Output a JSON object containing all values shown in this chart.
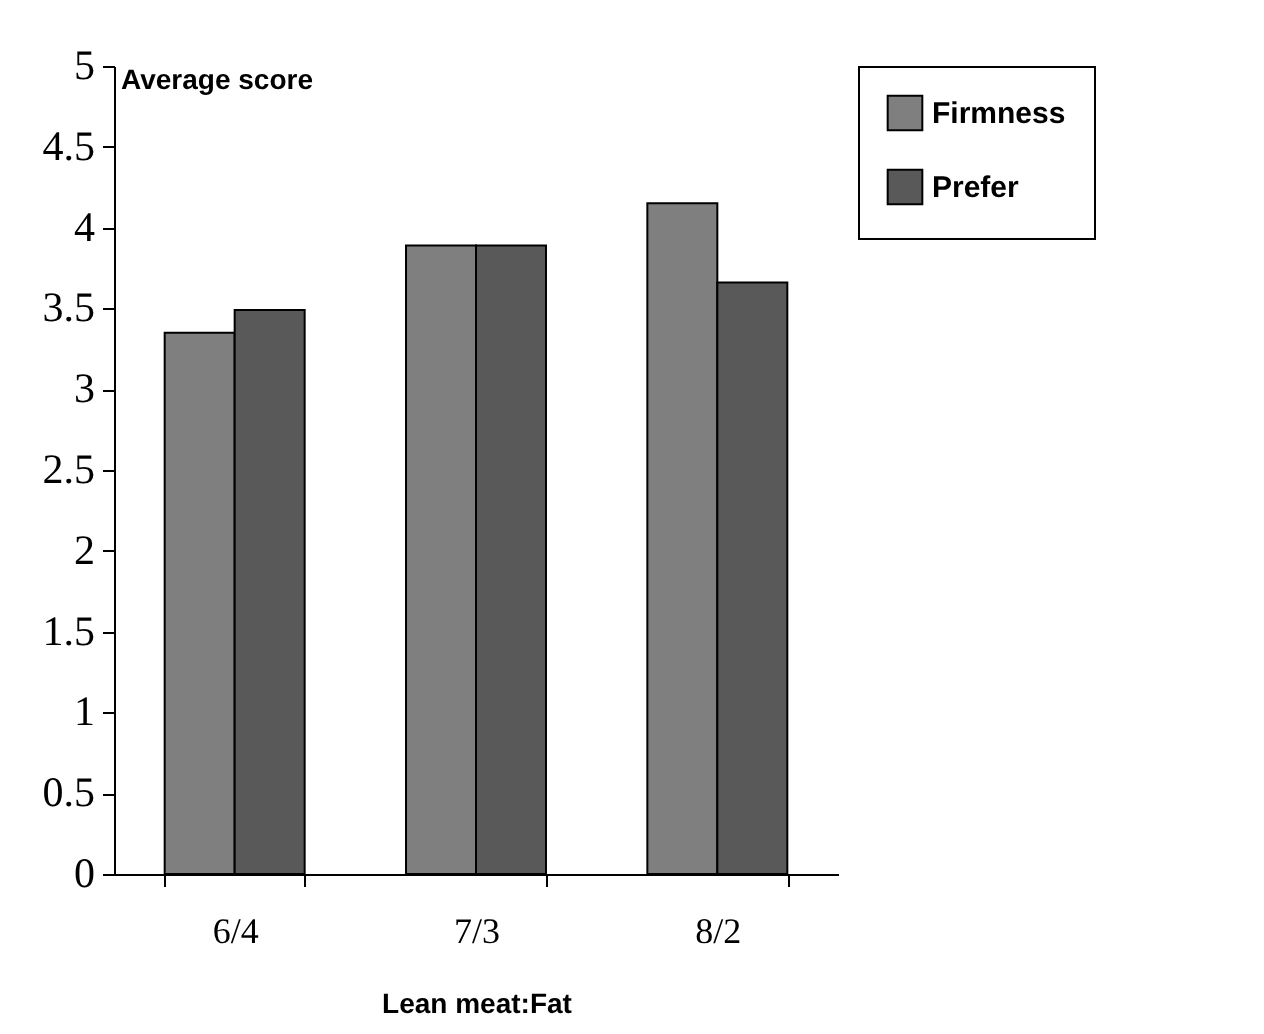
{
  "chart_data": {
    "type": "bar",
    "xlabel": "Lean meat:Fat",
    "ylabel": "Average score",
    "categories": [
      "6/4",
      "7/3",
      "8/2"
    ],
    "series": [
      {
        "name": "Firmness",
        "color": "#7f7f7f",
        "values": [
          3.35,
          3.89,
          4.15
        ]
      },
      {
        "name": "Prefer",
        "color": "#595959",
        "values": [
          3.49,
          3.89,
          3.66
        ]
      }
    ],
    "ylim": [
      0,
      5
    ],
    "yticks": [
      0,
      0.5,
      1,
      1.5,
      2,
      2.5,
      3,
      3.5,
      4,
      4.5,
      5
    ],
    "grid": false,
    "legend": "right"
  }
}
